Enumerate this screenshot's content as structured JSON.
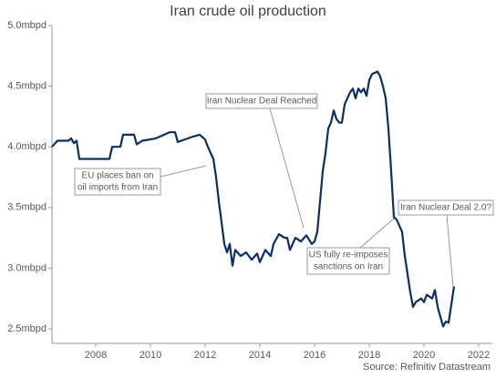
{
  "chart_data": {
    "type": "line",
    "title": "Iran crude oil production",
    "source": "Source: Refinitiv Datastream",
    "xlim": [
      2006.4,
      2022.5
    ],
    "xticks": [
      2008,
      2010,
      2012,
      2014,
      2016,
      2018,
      2020,
      2022
    ],
    "ylim": [
      2.38,
      5.0
    ],
    "yticks": [
      {
        "value": 2.5,
        "label": "2.5mbpd"
      },
      {
        "value": 3.0,
        "label": "3.0mbpd"
      },
      {
        "value": 3.5,
        "label": "3.5mbpd"
      },
      {
        "value": 4.0,
        "label": "4.0mbpd"
      },
      {
        "value": 4.5,
        "label": "4.5mbpd"
      },
      {
        "value": 5.0,
        "label": "5.0mbpd"
      }
    ],
    "series": [
      {
        "color": "#0b2f63",
        "x": [
          2006.4,
          2006.6,
          2007.0,
          2007.1,
          2007.2,
          2007.3,
          2007.4,
          2008.5,
          2008.6,
          2008.9,
          2009.0,
          2009.4,
          2009.5,
          2009.7,
          2010.2,
          2010.5,
          2010.7,
          2010.9,
          2011.0,
          2011.5,
          2011.8,
          2012.0,
          2012.1,
          2012.3,
          2012.4,
          2012.5,
          2012.6,
          2012.7,
          2012.8,
          2012.9,
          2013.0,
          2013.1,
          2013.3,
          2013.5,
          2013.7,
          2013.9,
          2014.0,
          2014.2,
          2014.4,
          2014.5,
          2014.7,
          2014.9,
          2015.0,
          2015.1,
          2015.3,
          2015.5,
          2015.7,
          2015.9,
          2016.0,
          2016.1,
          2016.2,
          2016.3,
          2016.4,
          2016.5,
          2016.6,
          2016.7,
          2016.8,
          2016.9,
          2017.0,
          2017.1,
          2017.3,
          2017.4,
          2017.5,
          2017.6,
          2017.7,
          2017.8,
          2017.9,
          2018.0,
          2018.1,
          2018.3,
          2018.4,
          2018.5,
          2018.6,
          2018.7,
          2018.8,
          2018.9,
          2019.0,
          2019.2,
          2019.3,
          2019.4,
          2019.5,
          2019.6,
          2019.7,
          2019.9,
          2020.0,
          2020.1,
          2020.3,
          2020.4,
          2020.5,
          2020.6,
          2020.7,
          2020.8,
          2020.9,
          2021.0,
          2021.1
        ],
        "values": [
          4.0,
          4.05,
          4.05,
          4.07,
          4.03,
          4.05,
          3.9,
          3.9,
          4.0,
          4.0,
          4.1,
          4.1,
          4.02,
          4.05,
          4.07,
          4.1,
          4.12,
          4.12,
          4.04,
          4.08,
          4.1,
          4.06,
          4.0,
          3.9,
          3.75,
          3.55,
          3.38,
          3.2,
          3.13,
          3.2,
          3.02,
          3.15,
          3.1,
          3.13,
          3.07,
          3.12,
          3.05,
          3.15,
          3.1,
          3.2,
          3.28,
          3.25,
          3.25,
          3.15,
          3.25,
          3.22,
          3.27,
          3.2,
          3.22,
          3.3,
          3.55,
          3.8,
          3.95,
          4.15,
          4.2,
          4.3,
          4.23,
          4.2,
          4.2,
          4.35,
          4.45,
          4.48,
          4.4,
          4.48,
          4.45,
          4.48,
          4.42,
          4.55,
          4.6,
          4.62,
          4.58,
          4.5,
          4.4,
          4.15,
          3.8,
          3.42,
          3.4,
          3.3,
          3.1,
          2.95,
          2.8,
          2.68,
          2.72,
          2.75,
          2.72,
          2.78,
          2.75,
          2.82,
          2.68,
          2.6,
          2.52,
          2.56,
          2.55,
          2.7,
          2.85
        ]
      }
    ],
    "annotations": [
      {
        "lines": [
          "Iran Nuclear Deal Reached"
        ]
      },
      {
        "lines": [
          "EU places ban on",
          "oil imports from Iran"
        ]
      },
      {
        "lines": [
          "US fully re-imposes",
          "sanctions on Iran"
        ]
      },
      {
        "lines": [
          "Iran Nuclear Deal 2.0?"
        ]
      }
    ]
  }
}
